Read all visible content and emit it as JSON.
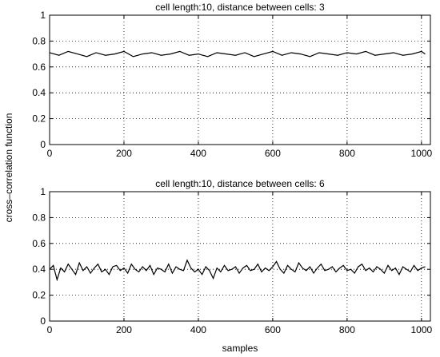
{
  "figure": {
    "ylabel": "cross–correlation function",
    "xlabel": "samples"
  },
  "chart_data": [
    {
      "type": "line",
      "title": "cell length:10, distance between cells: 3",
      "xlabel": "",
      "ylabel": "cross–correlation function",
      "xlim": [
        0,
        1024
      ],
      "ylim": [
        0,
        1
      ],
      "x_ticks": [
        0,
        200,
        400,
        600,
        800,
        1000
      ],
      "x_tick_labels": [
        "0",
        "200",
        "400",
        "600",
        "800",
        "1000"
      ],
      "y_ticks": [
        0,
        0.2,
        0.4,
        0.6,
        0.8,
        1
      ],
      "y_tick_labels": [
        "0",
        "0.2",
        "0.4",
        "0.6",
        "0.8",
        "1"
      ],
      "grid": true,
      "series": [
        {
          "x": [
            0,
            25,
            50,
            75,
            100,
            125,
            150,
            175,
            200,
            225,
            250,
            275,
            300,
            325,
            350,
            375,
            400,
            425,
            450,
            475,
            500,
            525,
            550,
            575,
            600,
            625,
            650,
            675,
            700,
            725,
            750,
            775,
            800,
            825,
            850,
            875,
            900,
            925,
            950,
            975,
            1000,
            1010
          ],
          "values": [
            0.71,
            0.69,
            0.72,
            0.7,
            0.68,
            0.71,
            0.69,
            0.7,
            0.72,
            0.68,
            0.7,
            0.71,
            0.69,
            0.7,
            0.72,
            0.69,
            0.7,
            0.68,
            0.71,
            0.7,
            0.69,
            0.71,
            0.68,
            0.7,
            0.72,
            0.69,
            0.71,
            0.7,
            0.68,
            0.71,
            0.7,
            0.69,
            0.71,
            0.7,
            0.72,
            0.69,
            0.7,
            0.71,
            0.69,
            0.7,
            0.72,
            0.7
          ]
        }
      ]
    },
    {
      "type": "line",
      "title": "cell length:10, distance between cells: 6",
      "xlabel": "samples",
      "ylabel": "cross–correlation function",
      "xlim": [
        0,
        1024
      ],
      "ylim": [
        0,
        1
      ],
      "x_ticks": [
        0,
        200,
        400,
        600,
        800,
        1000
      ],
      "x_tick_labels": [
        "0",
        "200",
        "400",
        "600",
        "800",
        "1000"
      ],
      "y_ticks": [
        0,
        0.2,
        0.4,
        0.6,
        0.8,
        1
      ],
      "y_tick_labels": [
        "0",
        "0.2",
        "0.4",
        "0.6",
        "0.8",
        "1"
      ],
      "grid": true,
      "series": [
        {
          "x": [
            0,
            10,
            20,
            30,
            40,
            50,
            60,
            70,
            80,
            90,
            100,
            110,
            120,
            130,
            140,
            150,
            160,
            170,
            180,
            190,
            200,
            210,
            220,
            230,
            240,
            250,
            260,
            270,
            280,
            290,
            300,
            310,
            320,
            330,
            340,
            350,
            360,
            370,
            380,
            390,
            400,
            410,
            420,
            430,
            440,
            450,
            460,
            470,
            480,
            490,
            500,
            510,
            520,
            530,
            540,
            550,
            560,
            570,
            580,
            590,
            600,
            610,
            620,
            630,
            640,
            650,
            660,
            670,
            680,
            690,
            700,
            710,
            720,
            730,
            740,
            750,
            760,
            770,
            780,
            790,
            800,
            810,
            820,
            830,
            840,
            850,
            860,
            870,
            880,
            890,
            900,
            910,
            920,
            930,
            940,
            950,
            960,
            970,
            980,
            990,
            1000,
            1010
          ],
          "values": [
            0.4,
            0.43,
            0.32,
            0.41,
            0.38,
            0.44,
            0.4,
            0.36,
            0.45,
            0.39,
            0.42,
            0.37,
            0.41,
            0.44,
            0.38,
            0.4,
            0.36,
            0.42,
            0.43,
            0.39,
            0.41,
            0.37,
            0.44,
            0.4,
            0.38,
            0.42,
            0.39,
            0.43,
            0.36,
            0.41,
            0.4,
            0.38,
            0.44,
            0.37,
            0.42,
            0.4,
            0.39,
            0.47,
            0.41,
            0.38,
            0.4,
            0.36,
            0.42,
            0.39,
            0.33,
            0.41,
            0.38,
            0.43,
            0.39,
            0.4,
            0.42,
            0.37,
            0.41,
            0.43,
            0.39,
            0.4,
            0.44,
            0.38,
            0.41,
            0.39,
            0.42,
            0.46,
            0.4,
            0.37,
            0.43,
            0.4,
            0.38,
            0.45,
            0.41,
            0.39,
            0.42,
            0.37,
            0.41,
            0.44,
            0.39,
            0.4,
            0.42,
            0.38,
            0.41,
            0.43,
            0.39,
            0.4,
            0.37,
            0.42,
            0.44,
            0.39,
            0.41,
            0.38,
            0.42,
            0.4,
            0.37,
            0.43,
            0.39,
            0.41,
            0.36,
            0.42,
            0.4,
            0.38,
            0.43,
            0.39,
            0.41,
            0.42
          ]
        }
      ]
    }
  ]
}
